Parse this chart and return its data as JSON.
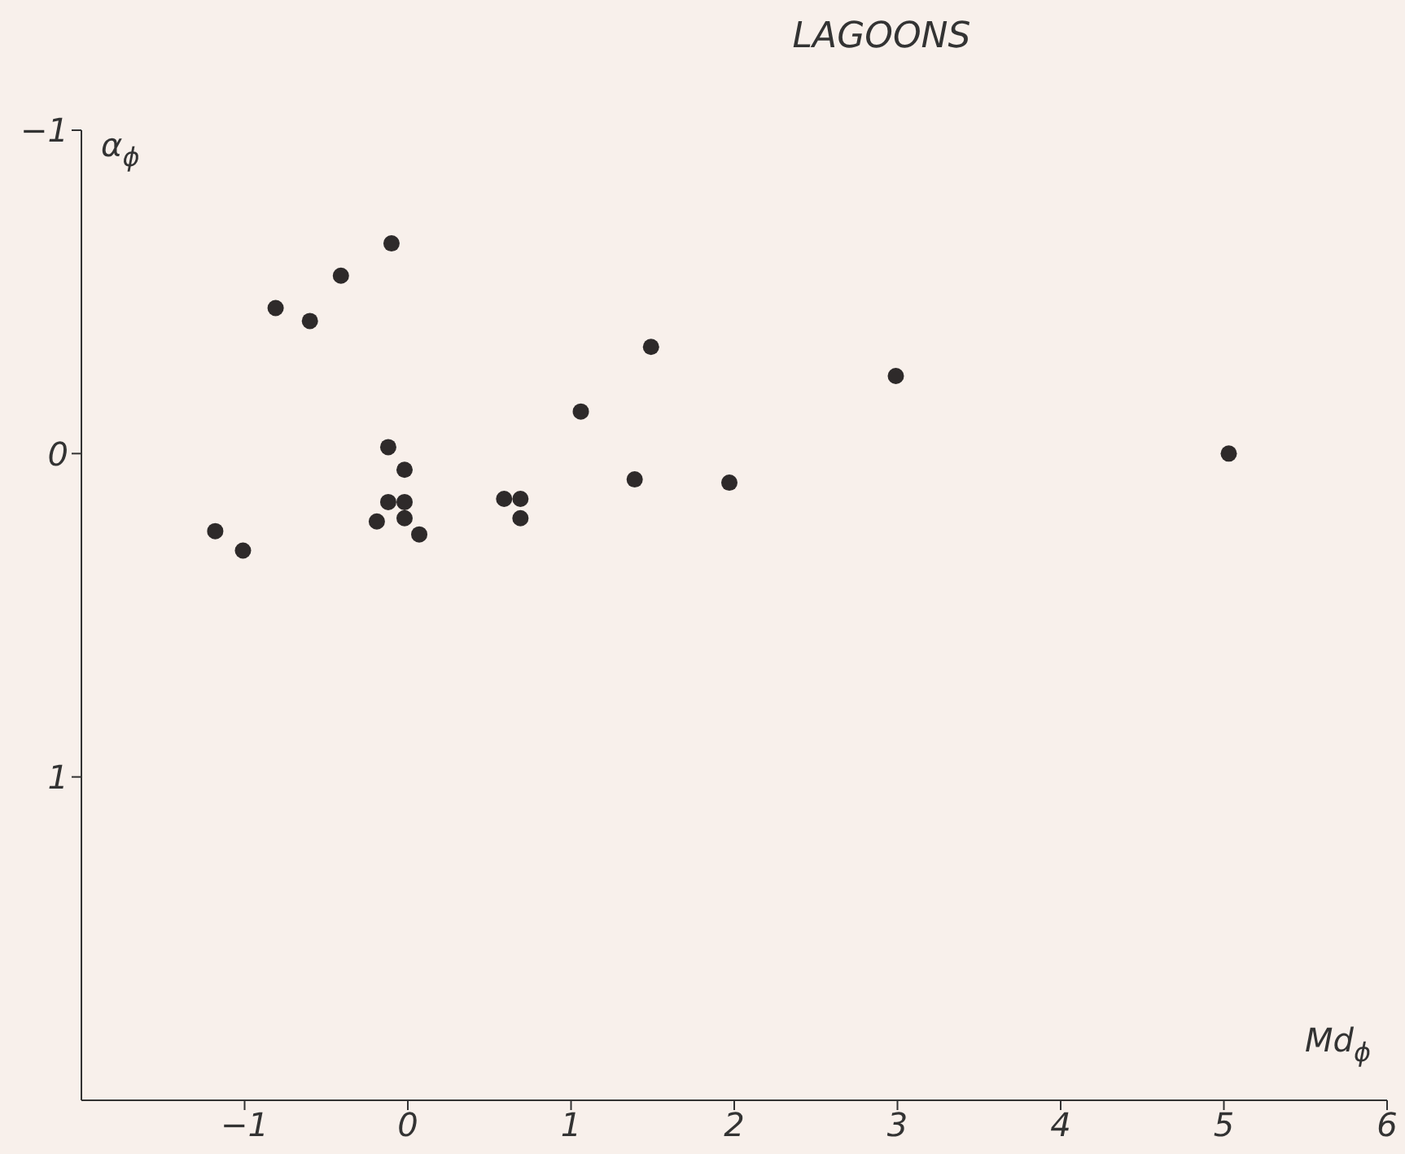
{
  "chart_data": {
    "type": "scatter",
    "title": "LAGOONS",
    "xlabel": "Md$_{ϕ}$",
    "ylabel": "α$_{ϕ}$",
    "x": [
      -0.1,
      -0.41,
      -0.81,
      -0.6,
      1.49,
      2.99,
      1.06,
      -0.12,
      5.03,
      -0.02,
      1.39,
      1.97,
      -0.12,
      -0.02,
      -0.02,
      -0.19,
      0.07,
      0.59,
      0.69,
      0.69,
      -1.18,
      -1.01
    ],
    "values": [
      -0.65,
      -0.55,
      -0.45,
      -0.41,
      -0.33,
      -0.24,
      -0.13,
      -0.02,
      0.0,
      0.05,
      0.08,
      0.09,
      0.15,
      0.15,
      0.2,
      0.21,
      0.25,
      0.14,
      0.14,
      0.2,
      0.24,
      0.3
    ],
    "color": "#2e2a2a",
    "marker": "circle",
    "xlim": [
      -2,
      6
    ],
    "xticks": [
      -1,
      0,
      1,
      2,
      3,
      4,
      5,
      6
    ],
    "ylim": [
      2,
      -1
    ],
    "yticks": [
      -1,
      0,
      1
    ],
    "grid": false
  }
}
